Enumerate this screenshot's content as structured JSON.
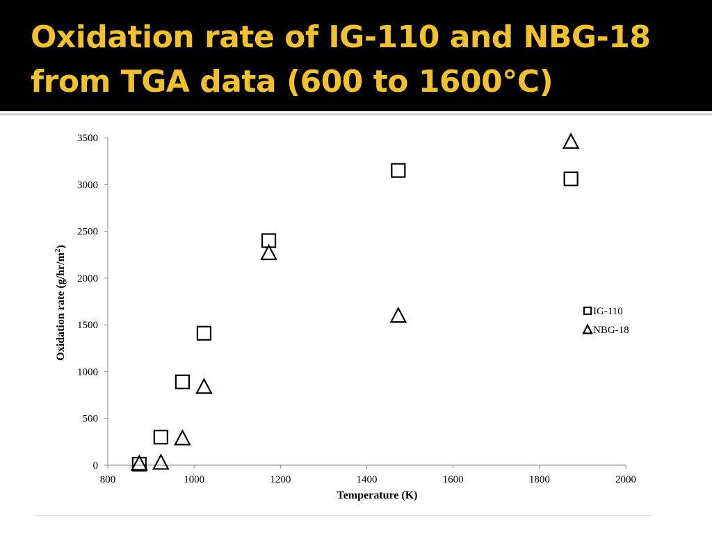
{
  "slide": {
    "title_line1": "Oxidation rate of IG-110 and NBG-18",
    "title_line2": "from TGA data (600 to 1600°C)"
  },
  "colors": {
    "title_bar": "#000000",
    "title_text": "#f2c12e",
    "markers": "#000000"
  },
  "chart_data": {
    "type": "scatter",
    "title": "",
    "xlabel": "Temperature (K)",
    "ylabel": "Oxidation rate (g/hr/m²)",
    "xlim": [
      800,
      2000
    ],
    "ylim": [
      0,
      3500
    ],
    "xticks": [
      800,
      1000,
      1200,
      1400,
      1600,
      1800,
      2000
    ],
    "yticks": [
      0,
      500,
      1000,
      1500,
      2000,
      2500,
      3000,
      3500
    ],
    "grid": false,
    "legend_position": "right",
    "series": [
      {
        "name": "IG-110",
        "marker": "square",
        "x": [
          873,
          923,
          973,
          1023,
          1173,
          1473,
          1873
        ],
        "y": [
          10,
          300,
          890,
          1410,
          2400,
          3150,
          3060
        ]
      },
      {
        "name": "NBG-18",
        "marker": "triangle",
        "x": [
          873,
          923,
          973,
          1023,
          1173,
          1473,
          1873
        ],
        "y": [
          20,
          30,
          290,
          840,
          2270,
          1600,
          3460
        ]
      }
    ]
  }
}
